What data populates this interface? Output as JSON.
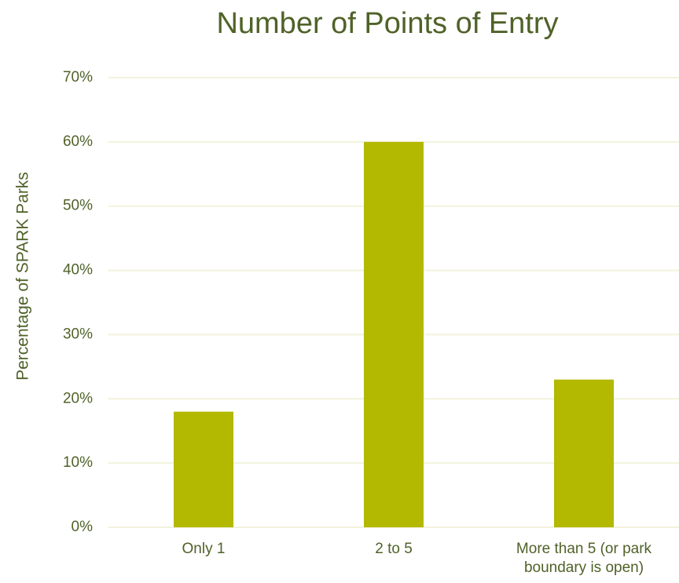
{
  "chart_data": {
    "type": "bar",
    "title": "Number of Points of Entry",
    "y_label": "Percentage of SPARK Parks",
    "categories": [
      "Only 1",
      "2 to 5",
      "More than 5 (or park boundary is open)"
    ],
    "values": [
      18,
      60,
      23
    ],
    "color": "#b3b800",
    "ylim": [
      0,
      70
    ],
    "yticks": [
      {
        "value": 0,
        "label": "0%"
      },
      {
        "value": 10,
        "label": "10%"
      },
      {
        "value": 20,
        "label": "20%"
      },
      {
        "value": 30,
        "label": "30%"
      },
      {
        "value": 40,
        "label": "40%"
      },
      {
        "value": 50,
        "label": "50%"
      },
      {
        "value": 60,
        "label": "60%"
      },
      {
        "value": 70,
        "label": "70%"
      }
    ],
    "grid": true
  }
}
